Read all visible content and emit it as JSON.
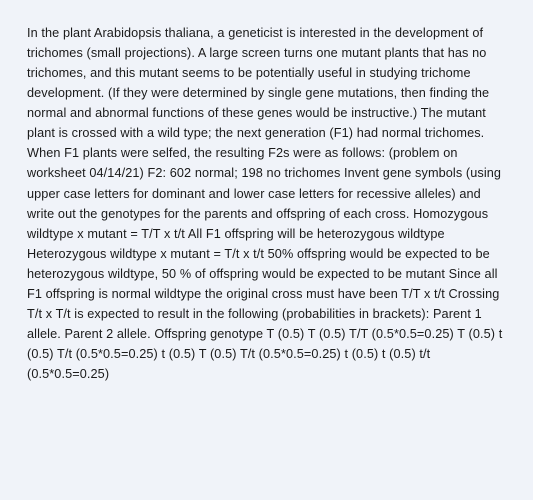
{
  "document": {
    "background_color": "#f0f3f9",
    "text_color": "#1a1a1a",
    "font_family": "Verdana, Geneva, sans-serif",
    "font_size": 12.7,
    "line_height": 1.58,
    "body_text": "In the plant Arabidopsis thaliana, a geneticist is interested in the development of trichomes (small projections). A large screen turns one mutant plants that has no trichomes, and this mutant seems to be potentially useful in studying trichome development. (If they were determined by single gene mutations, then finding the normal and abnormal functions of these genes would be instructive.) The mutant plant is crossed with a wild type; the next generation (F1) had normal trichomes. When F1 plants were selfed, the resulting F2s were as follows: (problem on worksheet 04/14/21) F2: 602 normal; 198 no trichomes Invent gene symbols (using upper case letters for dominant and lower case letters for recessive alleles) and write out the genotypes for the parents and offspring of each cross. Homozygous wildtype x mutant = T/T x t/t All F1 offspring will be heterozygous wildtype Heterozygous wildtype x mutant = T/t x t/t 50% offspring would be expected to be heterozygous wildtype, 50 % of offspring would be expected to be mutant Since all F1 offspring is normal wildtype the original cross must have been T/T x t/t Crossing T/t x T/t is expected to result in the following (probabilities in brackets): Parent 1 allele. Parent 2 allele. Offspring genotype T (0.5) T (0.5) T/T (0.5*0.5=0.25) T (0.5) t (0.5) T/t (0.5*0.5=0.25) t (0.5) T (0.5) T/t (0.5*0.5=0.25) t (0.5) t (0.5) t/t (0.5*0.5=0.25)"
  }
}
